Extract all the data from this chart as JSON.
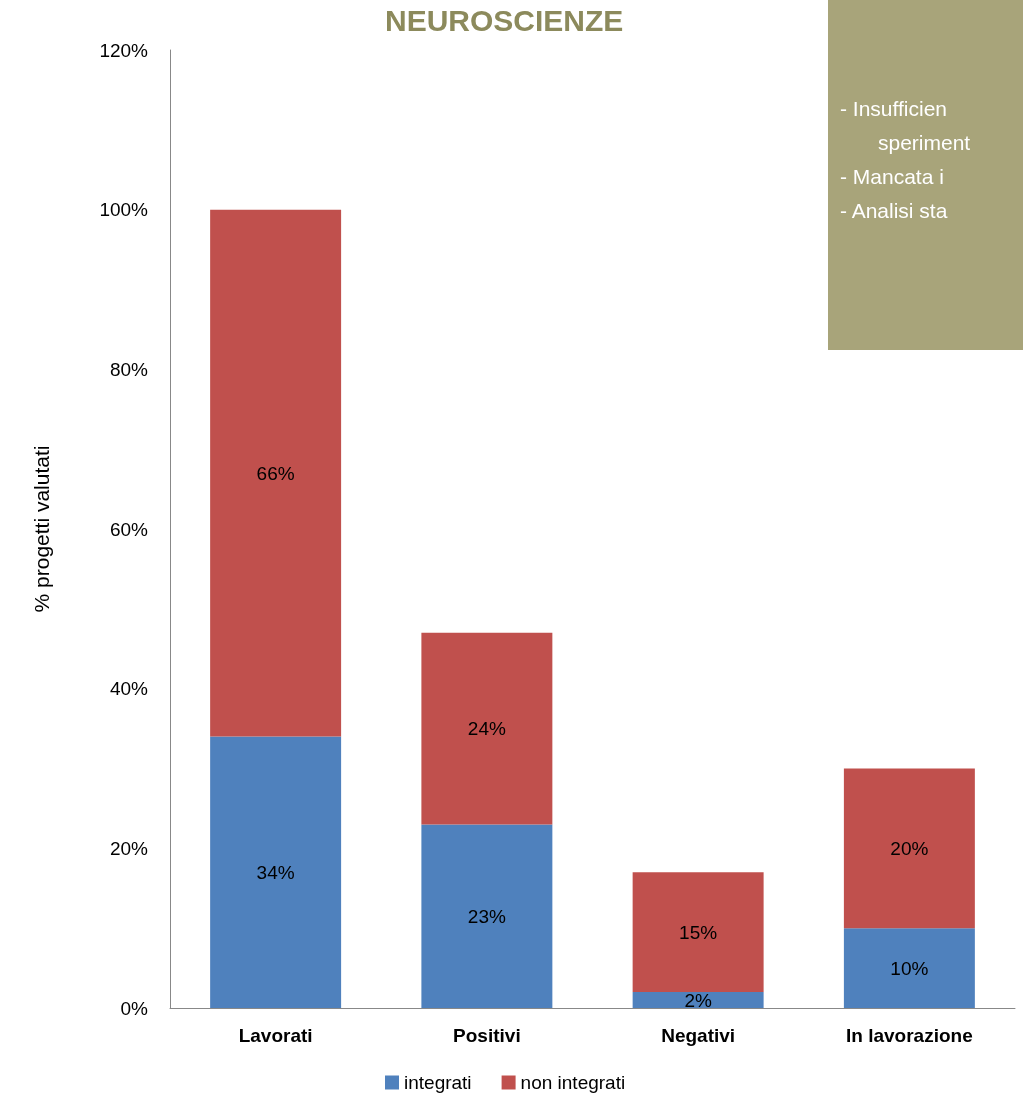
{
  "chart_data": {
    "type": "bar",
    "title": "NEUROSCIENZE",
    "ylabel": "% progetti valutati",
    "categories": [
      "Lavorati",
      "Positivi",
      "Negativi",
      "In lavorazione"
    ],
    "stacked": true,
    "series": [
      {
        "name": "integrati",
        "color": "#4f81bd",
        "values": [
          34,
          23,
          2,
          10
        ],
        "value_labels": [
          "34%",
          "23%",
          "2%",
          "10%"
        ]
      },
      {
        "name": "non integrati",
        "color": "#c0504d",
        "values": [
          66,
          24,
          15,
          20
        ],
        "value_labels": [
          "66%",
          "24%",
          "15%",
          "20%"
        ]
      }
    ],
    "ylim": [
      0,
      120
    ],
    "yticks": [
      {
        "value": 0,
        "label": "0%"
      },
      {
        "value": 20,
        "label": "20%"
      },
      {
        "value": 40,
        "label": "40%"
      },
      {
        "value": 60,
        "label": "60%"
      },
      {
        "value": 80,
        "label": "80%"
      },
      {
        "value": 100,
        "label": "100%"
      },
      {
        "value": 120,
        "label": "120%"
      }
    ],
    "annotations": [
      "- Insufficien",
      "speriment",
      "- Mancata i",
      "- Analisi sta"
    ],
    "grid": false,
    "legend": "bottom"
  }
}
